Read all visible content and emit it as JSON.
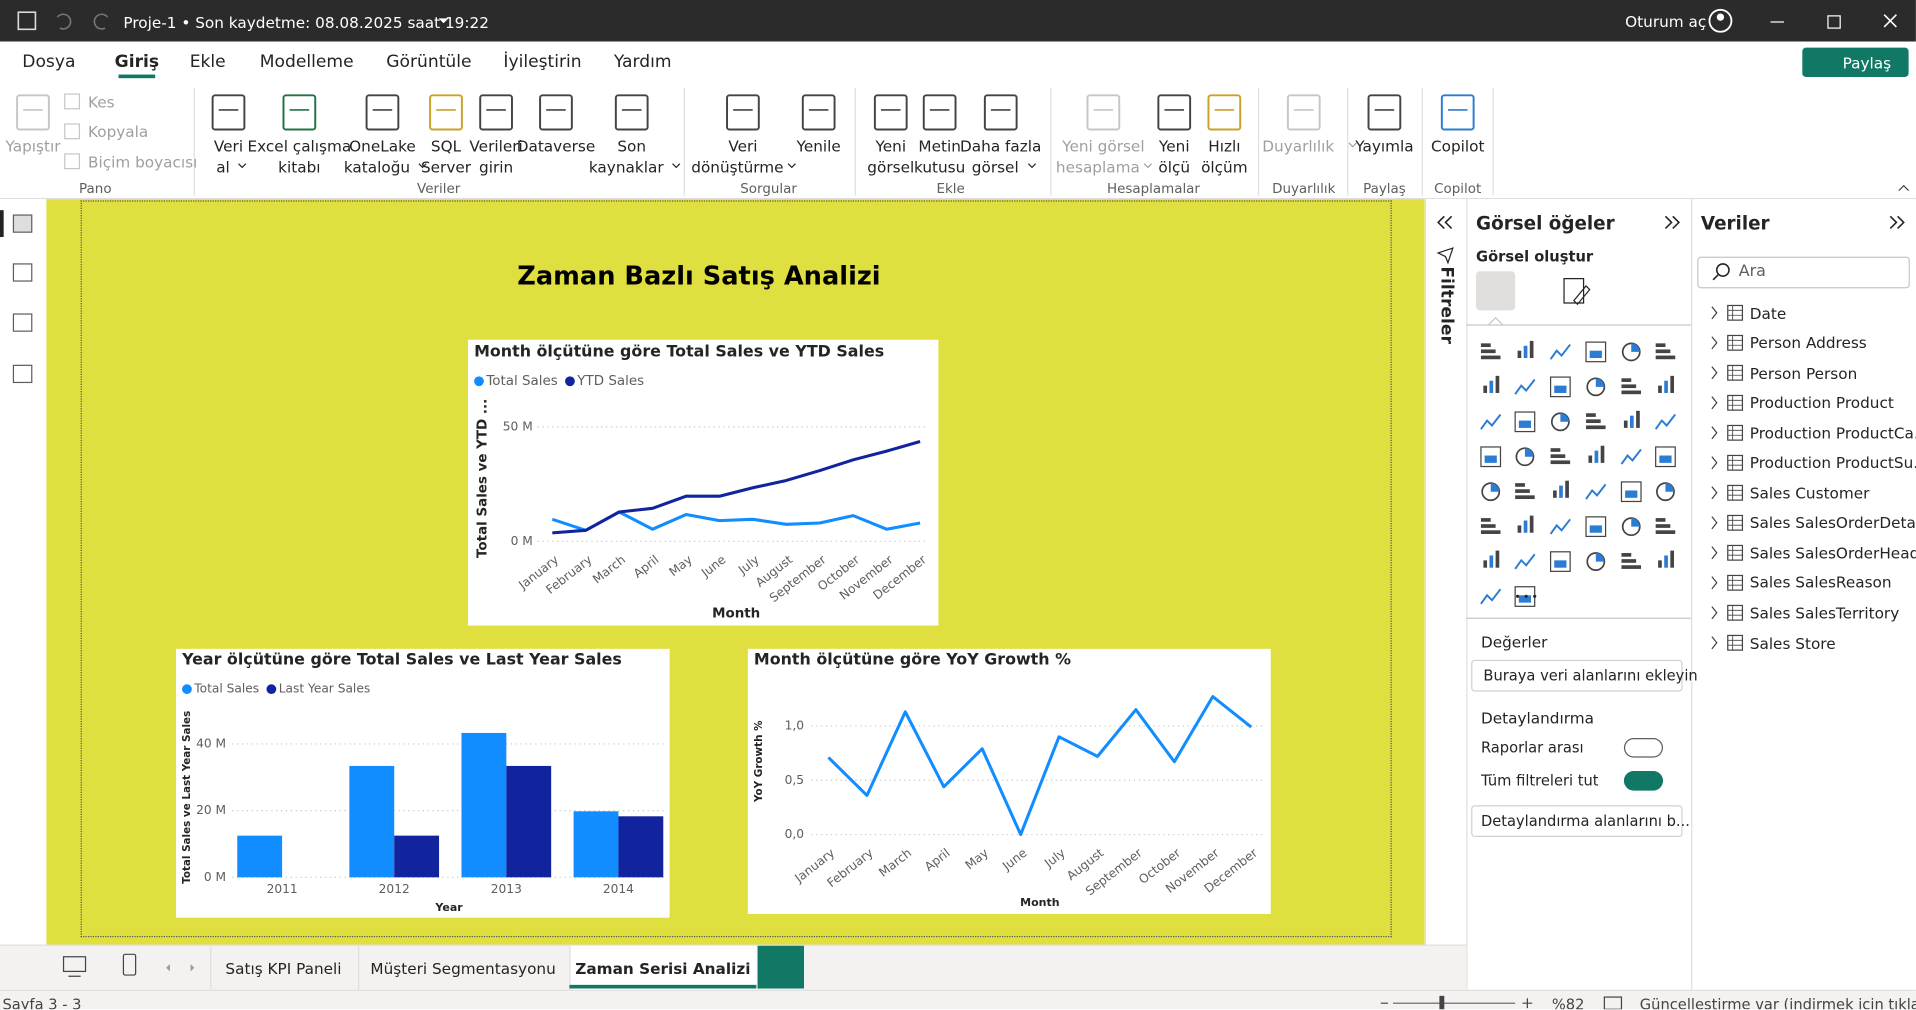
{
  "titlebar": {
    "document": "Proje-1 • Son kaydetme: 08.08.2025 saat 19:22",
    "sign_in": "Oturum aç"
  },
  "menu": {
    "items": [
      "Dosya",
      "Giriş",
      "Ekle",
      "Modelleme",
      "Görüntüle",
      "İyileştirin",
      "Yardım"
    ],
    "active": 1,
    "share": "Paylaş"
  },
  "ribbon": {
    "groups": [
      {
        "label": "Pano",
        "buttons": [
          {
            "lines": [
              "Yapıştır"
            ],
            "enabled": false
          }
        ],
        "small": [
          {
            "text": "Kes",
            "enabled": false
          },
          {
            "text": "Kopyala",
            "enabled": false
          },
          {
            "text": "Biçim boyacısı",
            "enabled": false
          }
        ]
      },
      {
        "label": "Veriler",
        "buttons": [
          {
            "lines": [
              "Veri",
              "al"
            ],
            "enabled": true,
            "menu": true
          },
          {
            "lines": [
              "Excel çalışma",
              "kitabı"
            ],
            "enabled": true
          },
          {
            "lines": [
              "OneLake",
              "kataloğu"
            ],
            "enabled": true,
            "menu": true
          },
          {
            "lines": [
              "SQL",
              "Server"
            ],
            "enabled": true
          },
          {
            "lines": [
              "Verileri",
              "girin"
            ],
            "enabled": true
          },
          {
            "lines": [
              "Dataverse"
            ],
            "enabled": true
          },
          {
            "lines": [
              "Son",
              "kaynaklar"
            ],
            "enabled": true,
            "menu": true
          }
        ]
      },
      {
        "label": "Sorgular",
        "buttons": [
          {
            "lines": [
              "Veri",
              "dönüştürme"
            ],
            "enabled": true,
            "menu": true
          },
          {
            "lines": [
              "Yenile"
            ],
            "enabled": true
          }
        ]
      },
      {
        "label": "Ekle",
        "buttons": [
          {
            "lines": [
              "Yeni",
              "görsel"
            ],
            "enabled": true
          },
          {
            "lines": [
              "Metin",
              "kutusu"
            ],
            "enabled": true
          },
          {
            "lines": [
              "Daha fazla",
              "görsel"
            ],
            "enabled": true,
            "menu": true
          }
        ]
      },
      {
        "label": "Hesaplamalar",
        "buttons": [
          {
            "lines": [
              "Yeni görsel",
              "hesaplama"
            ],
            "enabled": false,
            "menu": true
          },
          {
            "lines": [
              "Yeni",
              "ölçü"
            ],
            "enabled": true
          },
          {
            "lines": [
              "Hızlı",
              "ölçüm"
            ],
            "enabled": true
          }
        ]
      },
      {
        "label": "Duyarlılık",
        "buttons": [
          {
            "lines": [
              "Duyarlılık"
            ],
            "enabled": false,
            "menu": true
          }
        ]
      },
      {
        "label": "Paylaş",
        "buttons": [
          {
            "lines": [
              "Yayımla"
            ],
            "enabled": true
          }
        ]
      },
      {
        "label": "Copilot",
        "buttons": [
          {
            "lines": [
              "Copilot"
            ],
            "enabled": true
          }
        ]
      }
    ]
  },
  "canvas": {
    "title": "Zaman Bazlı Satış Analizi"
  },
  "chart_data": [
    {
      "type": "line",
      "title": "Month ölçütüne göre Total Sales ve YTD Sales",
      "x_label": "Month",
      "y_label": "Total Sales ve YTD ...",
      "categories": [
        "January",
        "February",
        "March",
        "April",
        "May",
        "June",
        "July",
        "August",
        "September",
        "October",
        "November",
        "December"
      ],
      "series": [
        {
          "name": "Total Sales",
          "color": "#118dff",
          "values": [
            9.6,
            4.8,
            12.8,
            5.3,
            11.7,
            9,
            9.6,
            7.4,
            8,
            11.2,
            5.3,
            8
          ]
        },
        {
          "name": "YTD Sales",
          "color": "#12239e",
          "values": [
            3.7,
            4.8,
            12.8,
            14.4,
            19.7,
            19.7,
            23.4,
            26.6,
            30.9,
            35.6,
            39.4,
            43.6
          ]
        }
      ],
      "ylim": [
        0,
        55
      ],
      "yticks": [
        {
          "value": 0,
          "label": "0 M"
        },
        {
          "value": 50,
          "label": "50 M"
        }
      ],
      "grid": true,
      "legend": "top-left"
    },
    {
      "type": "bar",
      "title": "Year ölçütüne göre Total Sales ve Last Year Sales",
      "x_label": "Year",
      "y_label": "Total Sales ve Last Year Sales",
      "categories": [
        "2011",
        "2012",
        "2013",
        "2014"
      ],
      "series": [
        {
          "name": "Total Sales",
          "color": "#118dff",
          "values": [
            12.5,
            33.4,
            43.3,
            19.8
          ]
        },
        {
          "name": "Last Year Sales",
          "color": "#12239e",
          "values": [
            null,
            12.5,
            33.4,
            18.3
          ]
        }
      ],
      "ylim": [
        0,
        48
      ],
      "yticks": [
        {
          "value": 0,
          "label": "0 M"
        },
        {
          "value": 20,
          "label": "20 M"
        },
        {
          "value": 40,
          "label": "40 M"
        }
      ],
      "grid": true,
      "legend": "top-left"
    },
    {
      "type": "line",
      "title": "Month ölçütüne göre YoY Growth %",
      "x_label": "Month",
      "y_label": "YoY Growth %",
      "categories": [
        "January",
        "February",
        "March",
        "April",
        "May",
        "June",
        "July",
        "August",
        "September",
        "October",
        "November",
        "December"
      ],
      "values": [
        0.71,
        0.36,
        1.13,
        0.44,
        0.79,
        0,
        0.9,
        0.72,
        1.15,
        0.67,
        1.27,
        0.99
      ],
      "color": "#118dff",
      "ylim": [
        0,
        1.35
      ],
      "yticks": [
        {
          "value": 0,
          "label": "0,0"
        },
        {
          "value": 0.5,
          "label": "0,5"
        },
        {
          "value": 1,
          "label": "1,0"
        }
      ],
      "grid": true
    }
  ],
  "filters": "Filtreler",
  "visuals_pane": {
    "title": "Görsel öğeler",
    "build": "Görsel oluştur",
    "values_heading": "Değerler",
    "values_placeholder": "Buraya veri alanlarını ekleyin",
    "drill_heading": "Detaylandırma",
    "cross_report": {
      "label": "Raporlar arası",
      "on": false
    },
    "keep_filters": {
      "label": "Tüm filtreleri tut",
      "on": true
    },
    "drill_placeholder": "Detaylandırma alanlarını b..."
  },
  "data_pane": {
    "title": "Veriler",
    "search_placeholder": "Ara",
    "tables": [
      "Date",
      "Person Address",
      "Person Person",
      "Production Product",
      "Production ProductCa...",
      "Production ProductSu...",
      "Sales Customer",
      "Sales SalesOrderDetail",
      "Sales SalesOrderHeader",
      "Sales SalesReason",
      "Sales SalesTerritory",
      "Sales Store"
    ]
  },
  "tabs": {
    "pages": [
      "Satış KPI Paneli",
      "Müşteri Segmentasyonu",
      "Zaman Serisi Analizi"
    ],
    "active": 2
  },
  "status": {
    "page": "Sayfa 3 - 3",
    "zoom": "%82",
    "update": "Güncelleştirme var (indirmek için tıklayın)"
  }
}
